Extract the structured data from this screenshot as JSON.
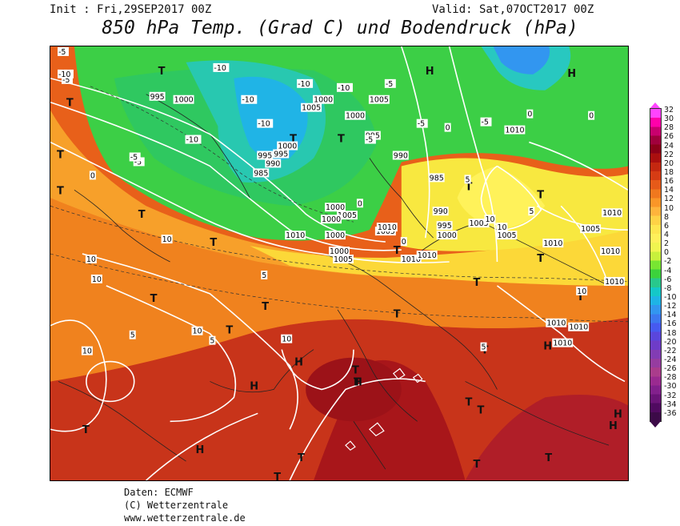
{
  "header": {
    "init": "Init : Fri,29SEP2017 00Z",
    "valid": "Valid: Sat,07OCT2017 00Z",
    "title": "850 hPa Temp. (Grad C) und Bodendruck (hPa)"
  },
  "legend": {
    "ticks": [
      "32",
      "30",
      "28",
      "26",
      "24",
      "22",
      "20",
      "18",
      "16",
      "14",
      "12",
      "10",
      "8",
      "6",
      "4",
      "2",
      "0",
      "-2",
      "-4",
      "-6",
      "-8",
      "-10",
      "-12",
      "-14",
      "-16",
      "-18",
      "-20",
      "-22",
      "-24",
      "-26",
      "-28",
      "-30",
      "-32",
      "-34",
      "-36"
    ],
    "colors": [
      "#ff44ff",
      "#ff00aa",
      "#c8006e",
      "#a0003c",
      "#8c0018",
      "#aa0f0f",
      "#c42810",
      "#d63c14",
      "#e65a19",
      "#f0781e",
      "#fa9628",
      "#ffb43c",
      "#ffd246",
      "#ffe650",
      "#fff05a",
      "#f0f550",
      "#c8f03c",
      "#78e632",
      "#3cd23c",
      "#28c88c",
      "#14c8c8",
      "#1eb4e6",
      "#3296f0",
      "#3c78f0",
      "#465af0",
      "#5a46dc",
      "#6e3cc8",
      "#823cb4",
      "#963ca0",
      "#aa3c8c",
      "#9a2a90",
      "#82208c",
      "#6a1478",
      "#500a60",
      "#3c0a48"
    ]
  },
  "map": {
    "high_marks": [
      "H",
      "H",
      "H",
      "H",
      "H",
      "H",
      "H",
      "H",
      "H"
    ],
    "low_marks": [
      "T",
      "T",
      "T",
      "T",
      "T",
      "T",
      "T",
      "T",
      "T",
      "T",
      "T",
      "T",
      "T",
      "T",
      "T",
      "T",
      "T",
      "T",
      "T",
      "T",
      "T",
      "T",
      "T",
      "T",
      "T",
      "T",
      "T",
      "T"
    ],
    "isobar_labels": [
      "995",
      "1000",
      "1005",
      "1000",
      "995",
      "1010",
      "1005",
      "1000",
      "995",
      "990",
      "985",
      "990",
      "995",
      "1000",
      "1010",
      "1005",
      "1000",
      "1005",
      "1010",
      "985",
      "990",
      "995",
      "1000",
      "1005",
      "1010",
      "1005",
      "1010",
      "1005",
      "1010",
      "1010",
      "1010",
      "1010",
      "1010",
      "1010",
      "1000",
      "1000",
      "1000",
      "1005",
      "1010"
    ],
    "temp_labels": [
      "-5",
      "-5",
      "-10",
      "-10",
      "-10",
      "-10",
      "-5",
      "-5",
      "0",
      "5",
      "10",
      "10",
      "10",
      "10",
      "10",
      "5",
      "5",
      "10",
      "5",
      "0",
      "-5",
      "-5",
      "-10",
      "-10",
      "-10",
      "0",
      "0",
      "0",
      "5",
      "5",
      "10",
      "10",
      "10",
      "-5",
      "-5",
      "0",
      "0"
    ]
  },
  "footer": {
    "source": "Daten: ECMWF",
    "copyright": "(C) Wetterzentrale",
    "url": "www.wetterzentrale.de"
  }
}
